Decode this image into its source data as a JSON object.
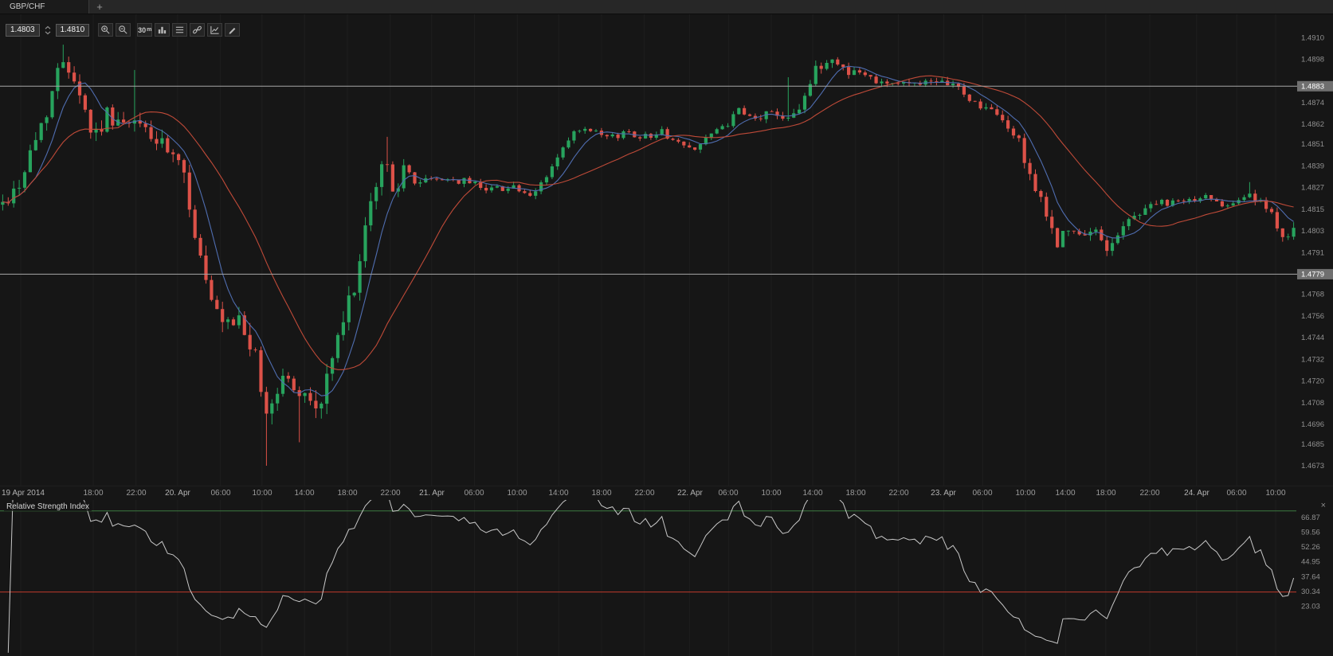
{
  "colors": {
    "bg": "#161616",
    "grid": "#1e1e1e",
    "up": "#27a35d",
    "down": "#dc5148",
    "ma_fast": "#4f6db0",
    "ma_slow": "#bf4a38",
    "axis_text": "#909090",
    "badge_bg": "#6f6f6f",
    "badge_text": "#ffffff",
    "level_line": "#a6a6a6",
    "rsi_line": "#c8c8c8",
    "rsi_overbought": "#3c7a40",
    "rsi_oversold": "#c03a2b",
    "icon": "#b8b8b8"
  },
  "tabbar": {
    "active_tab": "GBP/CHF",
    "add_button": "+"
  },
  "toolbar": {
    "bid": "1.4803",
    "ask": "1.4810",
    "timeframe": "30",
    "timeframe_sup": "m",
    "buttons": [
      "zoom-in",
      "zoom-out",
      "timeframe",
      "chart-type",
      "display-options",
      "link-instrument",
      "indicators",
      "draw-tools"
    ]
  },
  "chart_data": {
    "type": "candlestick",
    "title": "GBP/CHF",
    "price_axis": {
      "max": 1.49228,
      "min": 1.4662,
      "ticks": [
        1.491,
        1.4898,
        1.4874,
        1.4862,
        1.4851,
        1.4839,
        1.4827,
        1.4815,
        1.4803,
        1.4791,
        1.4768,
        1.4756,
        1.4744,
        1.4732,
        1.472,
        1.4708,
        1.4696,
        1.4685,
        1.4673
      ]
    },
    "levels": [
      {
        "price": 1.4883,
        "label": "1.4883"
      },
      {
        "price": 1.4779,
        "label": "1.4779"
      }
    ],
    "ma": [
      {
        "period": 7,
        "color_key": "ma_fast"
      },
      {
        "period": 22,
        "color_key": "ma_slow"
      }
    ],
    "candles": {
      "count": 236,
      "seed": 42,
      "path": [
        [
          0.0,
          1.4818
        ],
        [
          0.012,
          1.4828
        ],
        [
          0.03,
          1.4862
        ],
        [
          0.048,
          1.4901
        ],
        [
          0.058,
          1.4884
        ],
        [
          0.07,
          1.4855
        ],
        [
          0.082,
          1.4868
        ],
        [
          0.095,
          1.486
        ],
        [
          0.108,
          1.4862
        ],
        [
          0.12,
          1.4851
        ],
        [
          0.132,
          1.4843
        ],
        [
          0.142,
          1.4829
        ],
        [
          0.152,
          1.4791
        ],
        [
          0.162,
          1.476
        ],
        [
          0.172,
          1.4747
        ],
        [
          0.184,
          1.4754
        ],
        [
          0.194,
          1.4737
        ],
        [
          0.203,
          1.4701
        ],
        [
          0.212,
          1.4714
        ],
        [
          0.22,
          1.4727
        ],
        [
          0.228,
          1.4706
        ],
        [
          0.236,
          1.4719
        ],
        [
          0.244,
          1.4698
        ],
        [
          0.252,
          1.4727
        ],
        [
          0.26,
          1.4742
        ],
        [
          0.269,
          1.4765
        ],
        [
          0.278,
          1.479
        ],
        [
          0.288,
          1.4826
        ],
        [
          0.296,
          1.4843
        ],
        [
          0.303,
          1.4826
        ],
        [
          0.311,
          1.4836
        ],
        [
          0.322,
          1.483
        ],
        [
          0.34,
          1.4832
        ],
        [
          0.36,
          1.483
        ],
        [
          0.38,
          1.4826
        ],
        [
          0.396,
          1.4828
        ],
        [
          0.408,
          1.482
        ],
        [
          0.42,
          1.4832
        ],
        [
          0.432,
          1.4846
        ],
        [
          0.445,
          1.4859
        ],
        [
          0.458,
          1.4857
        ],
        [
          0.47,
          1.4854
        ],
        [
          0.483,
          1.4858
        ],
        [
          0.496,
          1.4855
        ],
        [
          0.51,
          1.4858
        ],
        [
          0.522,
          1.4852
        ],
        [
          0.533,
          1.4848
        ],
        [
          0.546,
          1.4855
        ],
        [
          0.558,
          1.486
        ],
        [
          0.57,
          1.4869
        ],
        [
          0.582,
          1.4864
        ],
        [
          0.594,
          1.4869
        ],
        [
          0.606,
          1.4866
        ],
        [
          0.618,
          1.4873
        ],
        [
          0.632,
          1.4894
        ],
        [
          0.643,
          1.4898
        ],
        [
          0.654,
          1.4892
        ],
        [
          0.665,
          1.489
        ],
        [
          0.676,
          1.4887
        ],
        [
          0.688,
          1.4885
        ],
        [
          0.7,
          1.4884
        ],
        [
          0.712,
          1.4886
        ],
        [
          0.724,
          1.4883
        ],
        [
          0.734,
          1.4886
        ],
        [
          0.744,
          1.4879
        ],
        [
          0.754,
          1.4873
        ],
        [
          0.764,
          1.487
        ],
        [
          0.774,
          1.4864
        ],
        [
          0.783,
          1.4857
        ],
        [
          0.791,
          1.4845
        ],
        [
          0.8,
          1.4826
        ],
        [
          0.809,
          1.4808
        ],
        [
          0.818,
          1.4797
        ],
        [
          0.827,
          1.4804
        ],
        [
          0.836,
          1.4797
        ],
        [
          0.846,
          1.4804
        ],
        [
          0.855,
          1.4794
        ],
        [
          0.864,
          1.4801
        ],
        [
          0.874,
          1.481
        ],
        [
          0.884,
          1.4815
        ],
        [
          0.894,
          1.4819
        ],
        [
          0.904,
          1.4817
        ],
        [
          0.914,
          1.4821
        ],
        [
          0.924,
          1.4819
        ],
        [
          0.934,
          1.4823
        ],
        [
          0.944,
          1.4818
        ],
        [
          0.954,
          1.482
        ],
        [
          0.964,
          1.4823
        ],
        [
          0.974,
          1.4818
        ],
        [
          0.984,
          1.481
        ],
        [
          0.992,
          1.4801
        ],
        [
          1.0,
          1.4804
        ]
      ],
      "vol": [
        [
          0,
          1.2
        ],
        [
          0.05,
          1.4
        ],
        [
          0.1,
          1.1
        ],
        [
          0.14,
          1.5
        ],
        [
          0.2,
          1.7
        ],
        [
          0.26,
          1.6
        ],
        [
          0.3,
          1.2
        ],
        [
          0.33,
          0.55
        ],
        [
          0.42,
          0.5
        ],
        [
          0.5,
          0.45
        ],
        [
          0.56,
          0.5
        ],
        [
          0.6,
          0.6
        ],
        [
          0.63,
          0.9
        ],
        [
          0.67,
          0.55
        ],
        [
          0.72,
          0.5
        ],
        [
          0.77,
          0.6
        ],
        [
          0.8,
          1.1
        ],
        [
          0.84,
          0.9
        ],
        [
          0.88,
          0.55
        ],
        [
          0.93,
          0.45
        ],
        [
          0.97,
          0.6
        ],
        [
          1.0,
          0.8
        ]
      ],
      "wicks": [
        {
          "f": 0.048,
          "high": 1.4906
        },
        {
          "f": 0.102,
          "high": 1.4892
        },
        {
          "f": 0.203,
          "low": 1.4673
        },
        {
          "f": 0.229,
          "low": 1.4686
        },
        {
          "f": 0.296,
          "high": 1.4855
        },
        {
          "f": 0.609,
          "high": 1.4888
        },
        {
          "f": 0.855,
          "low": 1.4789
        },
        {
          "f": 0.965,
          "high": 1.483
        }
      ]
    },
    "time_axis": [
      {
        "label": "19 Apr 2014",
        "f": 0.016,
        "day": true
      },
      {
        "label": "18:00",
        "f": 0.072
      },
      {
        "label": "22:00",
        "f": 0.105
      },
      {
        "label": "20. Apr",
        "f": 0.137,
        "day": true
      },
      {
        "label": "06:00",
        "f": 0.17
      },
      {
        "label": "10:00",
        "f": 0.202
      },
      {
        "label": "14:00",
        "f": 0.235
      },
      {
        "label": "18:00",
        "f": 0.268
      },
      {
        "label": "22:00",
        "f": 0.301
      },
      {
        "label": "21. Apr",
        "f": 0.333,
        "day": true
      },
      {
        "label": "06:00",
        "f": 0.366
      },
      {
        "label": "10:00",
        "f": 0.399
      },
      {
        "label": "14:00",
        "f": 0.431
      },
      {
        "label": "18:00",
        "f": 0.464
      },
      {
        "label": "22:00",
        "f": 0.497
      },
      {
        "label": "22. Apr",
        "f": 0.532,
        "day": true
      },
      {
        "label": "06:00",
        "f": 0.562
      },
      {
        "label": "10:00",
        "f": 0.595
      },
      {
        "label": "14:00",
        "f": 0.627
      },
      {
        "label": "18:00",
        "f": 0.66
      },
      {
        "label": "22:00",
        "f": 0.693
      },
      {
        "label": "23. Apr",
        "f": 0.728,
        "day": true
      },
      {
        "label": "06:00",
        "f": 0.758
      },
      {
        "label": "10:00",
        "f": 0.791
      },
      {
        "label": "14:00",
        "f": 0.822
      },
      {
        "label": "18:00",
        "f": 0.853
      },
      {
        "label": "22:00",
        "f": 0.887
      },
      {
        "label": "24. Apr",
        "f": 0.923,
        "day": true
      },
      {
        "label": "06:00",
        "f": 0.954
      },
      {
        "label": "10:00",
        "f": 0.984
      }
    ]
  },
  "rsi": {
    "title": "Relative Strength Index",
    "close_label": "×",
    "period": 14,
    "axis": {
      "max": 75.4,
      "min": -1.6,
      "ticks": [
        "66.87",
        "59.56",
        "52.26",
        "44.95",
        "37.64",
        "30.34",
        "23.03"
      ],
      "tick_values": [
        66.87,
        59.56,
        52.26,
        44.95,
        37.64,
        30.34,
        23.03
      ]
    },
    "levels": [
      {
        "value": 70,
        "color_key": "rsi_overbought"
      },
      {
        "value": 30,
        "color_key": "rsi_oversold"
      }
    ]
  }
}
